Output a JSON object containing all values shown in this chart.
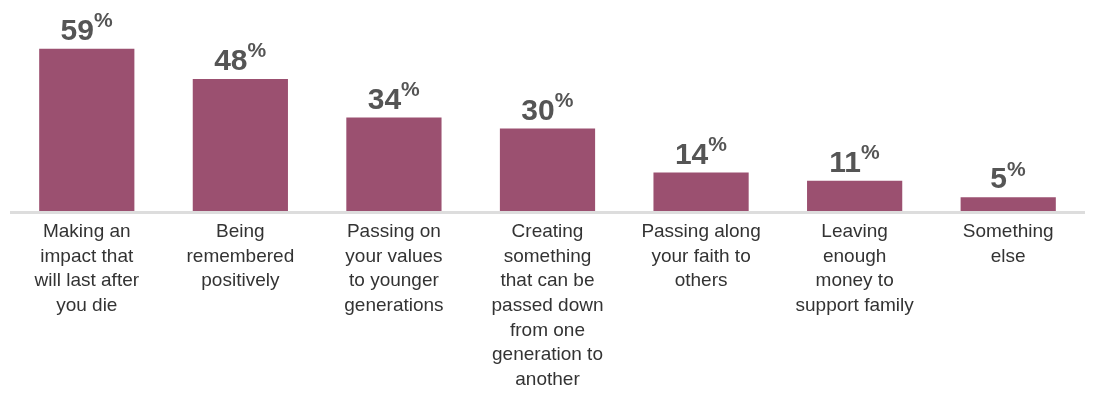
{
  "chart_data": {
    "type": "bar",
    "categories": [
      "Making an\nimpact that\nwill last after\nyou die",
      "Being\nremembered\npositively",
      "Passing on\nyour values\nto younger\ngenerations",
      "Creating\nsomething\nthat can be\npassed down\nfrom one\ngeneration to\nanother",
      "Passing along\nyour faith to\nothers",
      "Leaving\nenough\nmoney to\nsupport family",
      "Something\nelse"
    ],
    "values": [
      59,
      48,
      34,
      30,
      14,
      11,
      5
    ],
    "value_labels": [
      "59$^{%}$",
      "48$^{%}$",
      "34$^{%}$",
      "30$^{%}$",
      "14$^{%}$",
      "11$^{%}$",
      "5$^{%}$"
    ],
    "color": "#9b5070",
    "grid": false,
    "legend": false
  }
}
